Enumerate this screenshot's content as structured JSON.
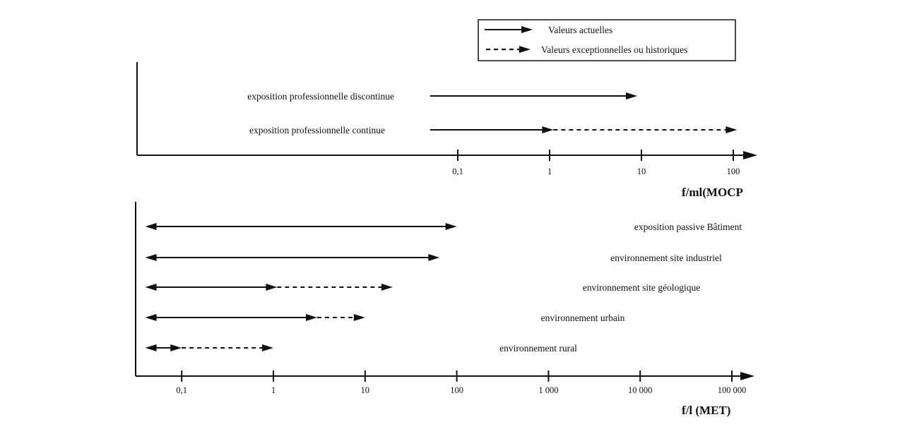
{
  "legend": {
    "solid_label": "Valeurs actuelles",
    "dashed_label": "Valeurs exceptionnelles ou historiques"
  },
  "chart_data": [
    {
      "type": "range",
      "scale": "log",
      "xlabel": "f/ml(MOCP",
      "tick_labels": [
        {
          "value": 0.1,
          "label": "0,1"
        },
        {
          "value": 1,
          "label": "1"
        },
        {
          "value": 10,
          "label": "10"
        },
        {
          "value": 100,
          "label": "100"
        }
      ],
      "ranges": [
        {
          "label": "exposition professionnelle discontinue",
          "segments": [
            {
              "from": 0.05,
              "to": 9,
              "style": "solid",
              "left_arrow": false,
              "right_arrow": true
            }
          ]
        },
        {
          "label": "exposition professionnelle continue",
          "segments": [
            {
              "from": 0.05,
              "to": 1.1,
              "style": "solid",
              "left_arrow": false,
              "right_arrow": true
            },
            {
              "from": 1.1,
              "to": 110,
              "style": "dashed",
              "left_arrow": false,
              "right_arrow": true
            }
          ]
        }
      ]
    },
    {
      "type": "range",
      "scale": "log",
      "xlabel": "f/l (MET)",
      "tick_labels": [
        {
          "value": 0.1,
          "label": "0,1"
        },
        {
          "value": 1,
          "label": "1"
        },
        {
          "value": 10,
          "label": "10"
        },
        {
          "value": 100,
          "label": "100"
        },
        {
          "value": 1000,
          "label": "1 000"
        },
        {
          "value": 10000,
          "label": "10 000"
        },
        {
          "value": 100000,
          "label": "100 000"
        }
      ],
      "ranges": [
        {
          "label": "exposition passive Bâtiment",
          "segments": [
            {
              "from": 0.04,
              "to": 100,
              "style": "solid",
              "left_arrow": true,
              "right_arrow": true
            }
          ]
        },
        {
          "label": "environnement site industriel",
          "segments": [
            {
              "from": 0.04,
              "to": 65,
              "style": "solid",
              "left_arrow": true,
              "right_arrow": true
            }
          ]
        },
        {
          "label": "environnement site géologique",
          "segments": [
            {
              "from": 0.04,
              "to": 1.1,
              "style": "solid",
              "left_arrow": true,
              "right_arrow": true
            },
            {
              "from": 1.1,
              "to": 20,
              "style": "dashed",
              "left_arrow": false,
              "right_arrow": true
            }
          ]
        },
        {
          "label": "environnement urbain",
          "segments": [
            {
              "from": 0.04,
              "to": 3,
              "style": "solid",
              "left_arrow": true,
              "right_arrow": true
            },
            {
              "from": 3,
              "to": 10,
              "style": "dashed",
              "left_arrow": false,
              "right_arrow": true
            }
          ]
        },
        {
          "label": "environnement rural",
          "segments": [
            {
              "from": 0.04,
              "to": 0.1,
              "style": "solid",
              "left_arrow": true,
              "right_arrow": true
            },
            {
              "from": 0.1,
              "to": 1,
              "style": "dashed",
              "left_arrow": false,
              "right_arrow": true
            }
          ]
        }
      ]
    }
  ]
}
